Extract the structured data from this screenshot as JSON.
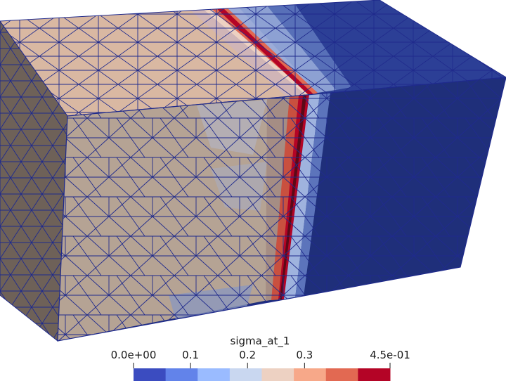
{
  "scene": {
    "mesh": "tetrahedral box mesh with visible triangle edges",
    "edge_color": "#1f2a8c",
    "field_colors": {
      "low": "#2c3f96",
      "mid": "#9fb3de",
      "high_band": "#b40426",
      "tan": "#d9b8a2",
      "front_tan": "#b5a394",
      "side_tan": "#6e6158"
    }
  },
  "colorbar": {
    "title": "sigma_at_1",
    "tick_labels": [
      "0.0e+00",
      "0.1",
      "0.2",
      "0.3",
      "4.5e-01"
    ],
    "tick_values": [
      0,
      0.1,
      0.2,
      0.3,
      0.45
    ],
    "range": [
      0,
      0.45
    ],
    "bin_colors": [
      "#3b4cc0",
      "#6283ea",
      "#9abbff",
      "#c9d7f0",
      "#edd1c2",
      "#f7a889",
      "#e26952",
      "#b40426"
    ]
  }
}
